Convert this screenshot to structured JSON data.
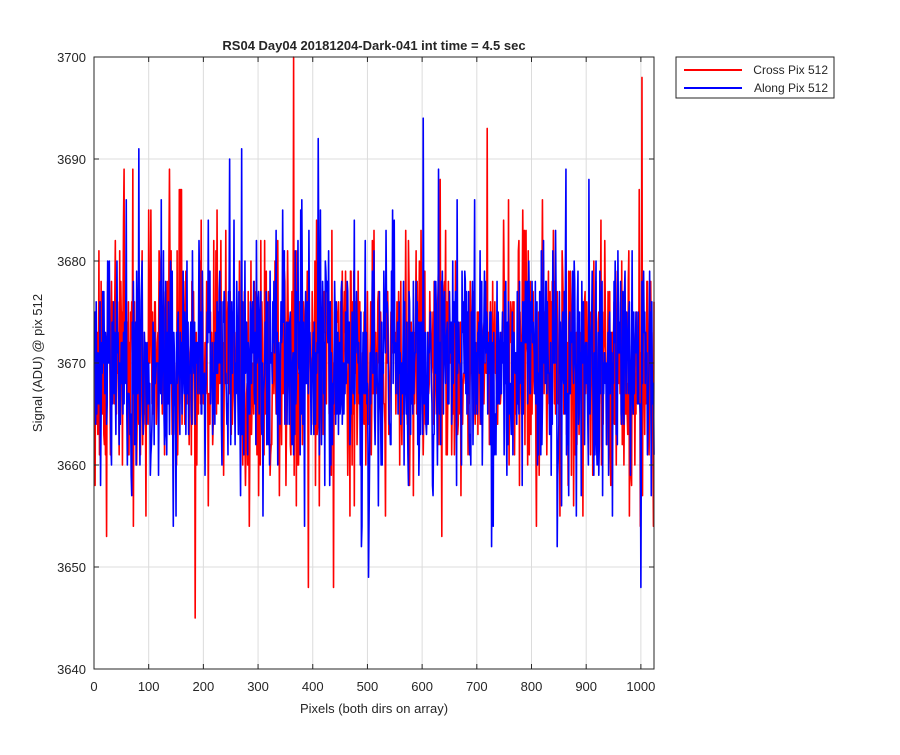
{
  "chart_data": {
    "type": "line",
    "title": "RS04 Day04 20181204-Dark-041 int time = 4.5 sec",
    "xlabel": "Pixels (both dirs on array)",
    "ylabel": "Signal (ADU) @ pix 512",
    "xlim": [
      0,
      1024
    ],
    "ylim": [
      3640,
      3700
    ],
    "xticks": [
      0,
      100,
      200,
      300,
      400,
      500,
      600,
      700,
      800,
      900,
      1000
    ],
    "yticks": [
      3640,
      3650,
      3660,
      3670,
      3680,
      3690,
      3700
    ],
    "xtick_labels": [
      "0",
      "100",
      "200",
      "300",
      "400",
      "500",
      "600",
      "700",
      "800",
      "900",
      "1000"
    ],
    "ytick_labels": [
      "3640",
      "3650",
      "3660",
      "3670",
      "3680",
      "3690",
      "3700"
    ],
    "grid": true,
    "legend_position": "outside-top-right",
    "series": [
      {
        "name": "Cross Pix 512",
        "color": "#ff0000",
        "mean": 3670,
        "noise_sd": 6.3,
        "peaks": [
          [
            365,
            3700
          ],
          [
            719,
            3693
          ],
          [
            1002,
            3698
          ],
          [
            55,
            3689
          ],
          [
            158,
            3687
          ],
          [
            185,
            3645
          ],
          [
            392,
            3648
          ],
          [
            438,
            3648
          ],
          [
            820,
            3686
          ]
        ]
      },
      {
        "name": "Along Pix 512",
        "color": "#0000ff",
        "mean": 3670,
        "noise_sd": 6.0,
        "peaks": [
          [
            82,
            3691
          ],
          [
            270,
            3691
          ],
          [
            248,
            3690
          ],
          [
            410,
            3692
          ],
          [
            602,
            3694
          ],
          [
            630,
            3689
          ],
          [
            905,
            3688
          ],
          [
            1000,
            3648
          ],
          [
            502,
            3649
          ]
        ]
      }
    ]
  }
}
